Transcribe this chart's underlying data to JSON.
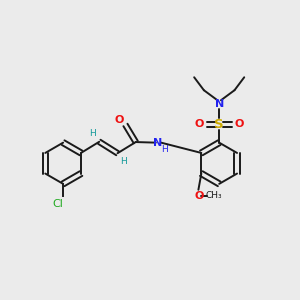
{
  "bg_color": "#ebebeb",
  "bond_color": "#1a1a1a",
  "cl_color": "#22aa22",
  "o_color": "#ee1111",
  "n_color": "#2222ee",
  "s_color": "#ccaa00",
  "h_color": "#119999",
  "figsize": [
    3.0,
    3.0
  ],
  "dpi": 100,
  "xlim": [
    0,
    10
  ],
  "ylim": [
    0,
    10
  ]
}
